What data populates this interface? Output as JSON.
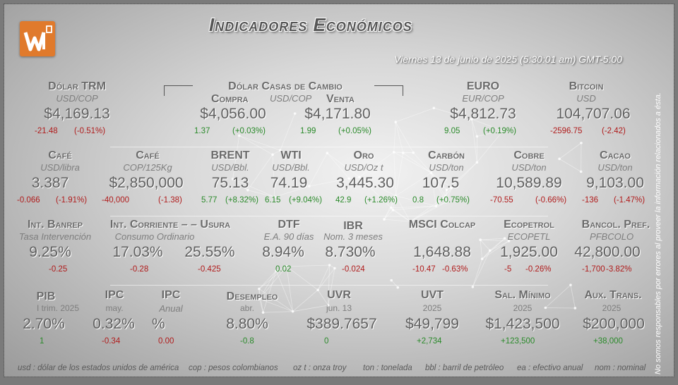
{
  "title": "Indicadores Económicos",
  "date": "Viernes 13 de junio de 2025 (5:30:01 am) GMT-5:00",
  "disclaimer": "No somos responsables por errores al proveer la información relacionados a ésta.",
  "row1": {
    "trm": {
      "head": "Dólar TRM",
      "sub": "USD/COP",
      "value": "$4,169.13",
      "d1": "-21.48",
      "d2": "(-0.51%)"
    },
    "casas": {
      "head": "Dólar Casas de Cambio",
      "compra": "Compra",
      "venta": "Venta",
      "sub": "USD/COP",
      "compra_value": "$4,056.00",
      "compra_d1": "1.37",
      "compra_d2": "(+0.03%)",
      "venta_value": "$4,171.80",
      "venta_d1": "1.99",
      "venta_d2": "(+0.05%)"
    },
    "euro": {
      "head": "EURO",
      "sub": "EUR/COP",
      "value": "$4,812.73",
      "d1": "9.05",
      "d2": "(+0.19%)"
    },
    "bitcoin": {
      "head": "Bitcoin",
      "sub": "USD",
      "value": "104,707.06",
      "d1": "-2596.75",
      "d2": "(-2.42)"
    }
  },
  "row2": {
    "cafe1": {
      "head": "Café",
      "sub": "USD/libra",
      "value": "3.387",
      "d1": "-0.066",
      "d2": "(-1.91%)"
    },
    "cafe2": {
      "head": "Café",
      "sub": "COP/125Kg",
      "value": "$2,850,000",
      "d1": "-40,000",
      "d2": "(-1.38)"
    },
    "brent": {
      "head": "BRENT",
      "sub": "USD/Bbl.",
      "value": "75.13",
      "d1": "5.77",
      "d2": "(+8.32%)"
    },
    "wti": {
      "head": "WTI",
      "sub": "USD/Bbl.",
      "value": "74.19",
      "d1": "6.15",
      "d2": "(+9.04%)"
    },
    "oro": {
      "head": "Oro",
      "sub": "USD/Oz t",
      "value": "3,445.30",
      "d1": "42.9",
      "d2": "(+1.26%)"
    },
    "carbon": {
      "head": "Carbón",
      "sub": "USD/ton",
      "value": "107.5",
      "d1": "0.8",
      "d2": "(+0.75%)"
    },
    "cobre": {
      "head": "Cobre",
      "sub": "USD/ton",
      "value": "10,589.89",
      "d1": "-70.55",
      "d2": "(-0.66%)"
    },
    "cacao": {
      "head": "Cacao",
      "sub": "USD/ton",
      "value": "9,103.00",
      "d1": "-136",
      "d2": "(-1.47%)"
    }
  },
  "row3": {
    "banrep": {
      "head": "Int. Banrep",
      "sub": "Tasa Intervención",
      "value": "9.25%",
      "d1": "-0.25"
    },
    "corriente": {
      "head": "Int. Corriente – – Usura",
      "sub": "Consumo Ordinario",
      "value1": "17.03%",
      "d1": "-0.28",
      "value2": "25.55%",
      "d2": "-0.425"
    },
    "dtf": {
      "head": "DTF",
      "sub": "E.A. 90 días",
      "value": "8.94%",
      "d1": "0.02"
    },
    "ibr": {
      "head": "IBR",
      "sub": "Nom. 3 meses",
      "value": "8.730%",
      "d1": "-0.024"
    },
    "msci": {
      "head": "MSCI Colcap",
      "value": "1,648.88",
      "d1": "-10.47",
      "d2": "-0.63%"
    },
    "ecopetrol": {
      "head": "Ecopetrol",
      "sub": "ECOPETL",
      "value": "1,925.00",
      "d1": "-5",
      "d2": "-0.26%"
    },
    "bancol": {
      "head": "Bancol. Pref.",
      "sub": "PFBCOLO",
      "value": "42,800.00",
      "d1": "-1,700",
      "d2": "-3.82%"
    }
  },
  "row4": {
    "pib": {
      "head": "PIB",
      "sub": "I trim. 2025",
      "value": "2.70%",
      "d1": "1"
    },
    "ipc1": {
      "head": "IPC",
      "sub": "may.",
      "value": "0.32%",
      "d1": "-0.34"
    },
    "ipc2": {
      "head": "IPC",
      "sub": "Anual",
      "value": "%",
      "d1": "0.00"
    },
    "desempleo": {
      "head": "Desempleo",
      "sub": "abr.",
      "value": "8.80%",
      "d1": "-0.8"
    },
    "uvr": {
      "head": "UVR",
      "sub": "jun. 13",
      "value": "$389.7657",
      "d1": "0"
    },
    "uvt": {
      "head": "UVT",
      "sub": "2025",
      "value": "$49,799",
      "d1": "+2,734"
    },
    "salmin": {
      "head": "Sal. Mínimo",
      "sub": "2025",
      "value": "$1,423,500",
      "d1": "+123,500"
    },
    "auxtrans": {
      "head": "Aux. Trans.",
      "sub": "2025",
      "value": "$200,000",
      "d1": "+38,000"
    }
  },
  "legend": [
    "usd : dólar de los estados unidos de américa",
    "cop : pesos colombianos",
    "oz t : onza troy",
    "ton : tonelada",
    "bbl : barril de petróleo",
    "ea : efectivo anual",
    "nom : nominal"
  ]
}
